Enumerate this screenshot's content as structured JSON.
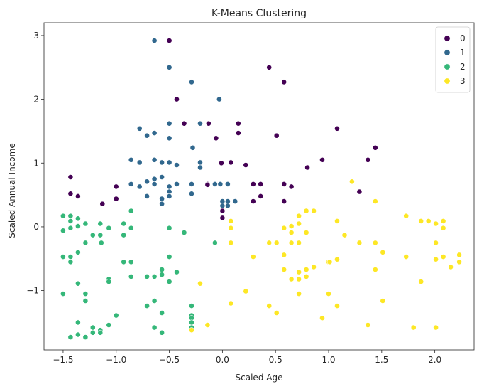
{
  "chart_data": {
    "type": "scatter",
    "title": "K-Means Clustering",
    "xlabel": "Scaled Age",
    "ylabel": "Scaled Annual Income",
    "xlim": [
      -1.68,
      2.37
    ],
    "ylim": [
      -1.93,
      3.2
    ],
    "xticks": [
      -1.5,
      -1.0,
      -0.5,
      0.0,
      0.5,
      1.0,
      1.5,
      2.0
    ],
    "xtick_labels": [
      "−1.5",
      "−1.0",
      "−0.5",
      "0.0",
      "0.5",
      "1.0",
      "1.5",
      "2.0"
    ],
    "yticks": [
      -1,
      0,
      1,
      2,
      3
    ],
    "ytick_labels": [
      "−1",
      "0",
      "1",
      "2",
      "3"
    ],
    "grid": false,
    "legend_position": "top-right",
    "series": [
      {
        "name": "0",
        "color": "#440154",
        "points": [
          [
            -1.43,
            0.78
          ],
          [
            -1.43,
            0.52
          ],
          [
            -1.36,
            0.48
          ],
          [
            -1.13,
            0.36
          ],
          [
            -1.0,
            0.63
          ],
          [
            -1.0,
            0.44
          ],
          [
            -0.43,
            2.0
          ],
          [
            -0.36,
            1.62
          ],
          [
            -0.13,
            1.62
          ],
          [
            -0.14,
            0.67
          ],
          [
            -0.14,
            0.66
          ],
          [
            -0.06,
            1.39
          ],
          [
            -0.01,
            1.0
          ],
          [
            0.0,
            0.25
          ],
          [
            0.0,
            0.14
          ],
          [
            0.08,
            1.01
          ],
          [
            0.15,
            1.62
          ],
          [
            0.15,
            1.47
          ],
          [
            0.22,
            0.97
          ],
          [
            0.29,
            0.67
          ],
          [
            0.29,
            0.4
          ],
          [
            0.36,
            0.67
          ],
          [
            0.36,
            0.48
          ],
          [
            0.44,
            2.5
          ],
          [
            0.51,
            1.43
          ],
          [
            0.58,
            2.27
          ],
          [
            0.58,
            0.67
          ],
          [
            0.58,
            0.4
          ],
          [
            0.65,
            0.63
          ],
          [
            0.8,
            0.93
          ],
          [
            0.94,
            1.05
          ],
          [
            1.08,
            1.54
          ],
          [
            1.29,
            0.55
          ],
          [
            1.37,
            1.05
          ],
          [
            1.44,
            1.24
          ],
          [
            -0.5,
            2.92
          ]
        ]
      },
      {
        "name": "1",
        "color": "#31688e",
        "points": [
          [
            -0.64,
            2.92
          ],
          [
            -0.5,
            2.5
          ],
          [
            -0.29,
            2.27
          ],
          [
            -0.03,
            2.0
          ],
          [
            -0.78,
            1.54
          ],
          [
            -0.71,
            1.43
          ],
          [
            -0.64,
            1.47
          ],
          [
            -0.5,
            1.62
          ],
          [
            -0.5,
            1.39
          ],
          [
            -0.21,
            1.62
          ],
          [
            -0.28,
            1.24
          ],
          [
            -0.86,
            1.05
          ],
          [
            -0.78,
            1.01
          ],
          [
            -0.64,
            1.05
          ],
          [
            -0.57,
            1.01
          ],
          [
            -0.5,
            1.01
          ],
          [
            -0.43,
            0.97
          ],
          [
            -0.21,
            1.01
          ],
          [
            -0.21,
            0.93
          ],
          [
            -0.86,
            0.67
          ],
          [
            -0.78,
            0.63
          ],
          [
            -0.71,
            0.71
          ],
          [
            -0.71,
            0.48
          ],
          [
            -0.64,
            0.75
          ],
          [
            -0.64,
            0.67
          ],
          [
            -0.57,
            0.78
          ],
          [
            -0.57,
            0.44
          ],
          [
            -0.57,
            0.36
          ],
          [
            -0.5,
            0.63
          ],
          [
            -0.5,
            0.55
          ],
          [
            -0.5,
            0.48
          ],
          [
            -0.43,
            0.67
          ],
          [
            -0.29,
            0.67
          ],
          [
            -0.29,
            0.52
          ],
          [
            -0.07,
            0.67
          ],
          [
            -0.02,
            0.67
          ],
          [
            0.0,
            0.4
          ],
          [
            0.0,
            0.33
          ],
          [
            0.05,
            0.67
          ],
          [
            0.05,
            0.4
          ],
          [
            0.05,
            0.33
          ],
          [
            0.12,
            0.4
          ]
        ]
      },
      {
        "name": "2",
        "color": "#35b779",
        "points": [
          [
            -1.5,
            0.17
          ],
          [
            -1.43,
            0.17
          ],
          [
            -1.43,
            0.09
          ],
          [
            -1.36,
            0.13
          ],
          [
            -1.5,
            -0.06
          ],
          [
            -1.43,
            -0.02
          ],
          [
            -1.36,
            0.01
          ],
          [
            -1.29,
            0.05
          ],
          [
            -1.29,
            -0.25
          ],
          [
            -1.22,
            -0.13
          ],
          [
            -1.15,
            0.05
          ],
          [
            -1.15,
            -0.13
          ],
          [
            -1.14,
            -0.25
          ],
          [
            -1.07,
            -0.02
          ],
          [
            -0.93,
            -0.13
          ],
          [
            -0.93,
            0.05
          ],
          [
            -0.86,
            0.25
          ],
          [
            -0.86,
            -0.02
          ],
          [
            -1.5,
            -0.47
          ],
          [
            -1.43,
            -0.47
          ],
          [
            -1.43,
            -0.55
          ],
          [
            -1.36,
            -0.89
          ],
          [
            -1.36,
            -0.4
          ],
          [
            -1.29,
            -1.05
          ],
          [
            -1.29,
            -1.16
          ],
          [
            -1.07,
            -0.82
          ],
          [
            -1.07,
            -0.86
          ],
          [
            -0.93,
            -0.55
          ],
          [
            -0.86,
            -0.55
          ],
          [
            -0.86,
            -0.78
          ],
          [
            -0.71,
            -0.78
          ],
          [
            -0.64,
            -0.78
          ],
          [
            -0.57,
            -0.67
          ],
          [
            -0.57,
            -0.75
          ],
          [
            -0.5,
            -0.47
          ],
          [
            -0.5,
            -0.86
          ],
          [
            -0.43,
            -0.71
          ],
          [
            -0.71,
            -1.24
          ],
          [
            -0.64,
            -1.16
          ],
          [
            -0.57,
            -1.35
          ],
          [
            -0.29,
            -1.24
          ],
          [
            -0.29,
            -1.39
          ],
          [
            -0.29,
            -1.43
          ],
          [
            -0.29,
            -1.5
          ],
          [
            -0.29,
            -1.58
          ],
          [
            -1.5,
            -1.05
          ],
          [
            -1.43,
            -1.73
          ],
          [
            -1.36,
            -1.5
          ],
          [
            -1.36,
            -1.69
          ],
          [
            -1.29,
            -1.73
          ],
          [
            -1.22,
            -1.58
          ],
          [
            -1.22,
            -1.66
          ],
          [
            -1.15,
            -1.62
          ],
          [
            -1.15,
            -1.66
          ],
          [
            -1.07,
            -1.54
          ],
          [
            -1.0,
            -1.39
          ],
          [
            -0.64,
            -1.58
          ],
          [
            -0.57,
            -1.66
          ],
          [
            -0.36,
            -0.09
          ],
          [
            -0.5,
            -0.02
          ],
          [
            -0.07,
            -0.25
          ]
        ]
      },
      {
        "name": "3",
        "color": "#fde725",
        "points": [
          [
            0.08,
            0.09
          ],
          [
            0.08,
            -0.02
          ],
          [
            0.08,
            -0.25
          ],
          [
            0.29,
            -0.47
          ],
          [
            0.44,
            -0.25
          ],
          [
            0.51,
            -0.25
          ],
          [
            0.58,
            -0.02
          ],
          [
            0.58,
            -0.44
          ],
          [
            0.58,
            -0.67
          ],
          [
            0.65,
            0.01
          ],
          [
            0.65,
            -0.09
          ],
          [
            0.65,
            -0.25
          ],
          [
            0.65,
            -0.82
          ],
          [
            0.72,
            0.17
          ],
          [
            0.72,
            0.05
          ],
          [
            0.72,
            -0.25
          ],
          [
            0.72,
            -0.71
          ],
          [
            0.72,
            -0.82
          ],
          [
            0.72,
            -1.05
          ],
          [
            0.79,
            0.25
          ],
          [
            0.79,
            -0.09
          ],
          [
            0.79,
            -0.67
          ],
          [
            0.79,
            -0.78
          ],
          [
            0.86,
            0.25
          ],
          [
            0.86,
            -0.63
          ],
          [
            1.0,
            -0.55
          ],
          [
            1.0,
            -1.05
          ],
          [
            1.08,
            0.09
          ],
          [
            1.08,
            -0.51
          ],
          [
            1.08,
            -1.24
          ],
          [
            1.15,
            -0.13
          ],
          [
            1.22,
            0.71
          ],
          [
            1.29,
            -0.25
          ],
          [
            1.37,
            -1.54
          ],
          [
            1.44,
            0.4
          ],
          [
            1.44,
            -0.25
          ],
          [
            1.44,
            -0.67
          ],
          [
            1.51,
            -0.4
          ],
          [
            1.51,
            -1.16
          ],
          [
            1.73,
            0.17
          ],
          [
            1.73,
            -0.47
          ],
          [
            1.8,
            -1.58
          ],
          [
            1.87,
            0.09
          ],
          [
            1.87,
            -0.86
          ],
          [
            1.94,
            0.09
          ],
          [
            2.01,
            0.05
          ],
          [
            2.01,
            -0.25
          ],
          [
            2.01,
            -0.51
          ],
          [
            2.08,
            0.09
          ],
          [
            2.08,
            -0.02
          ],
          [
            2.08,
            -0.47
          ],
          [
            2.15,
            -0.63
          ],
          [
            2.23,
            -0.44
          ],
          [
            2.23,
            -0.55
          ],
          [
            2.01,
            -1.58
          ],
          [
            -0.29,
            -1.62
          ],
          [
            -0.21,
            -0.89
          ],
          [
            -0.14,
            -1.54
          ],
          [
            0.08,
            -1.2
          ],
          [
            0.22,
            -1.01
          ],
          [
            0.44,
            -1.24
          ],
          [
            0.51,
            -1.35
          ],
          [
            0.94,
            -1.43
          ],
          [
            1.01,
            -0.55
          ]
        ]
      }
    ]
  }
}
